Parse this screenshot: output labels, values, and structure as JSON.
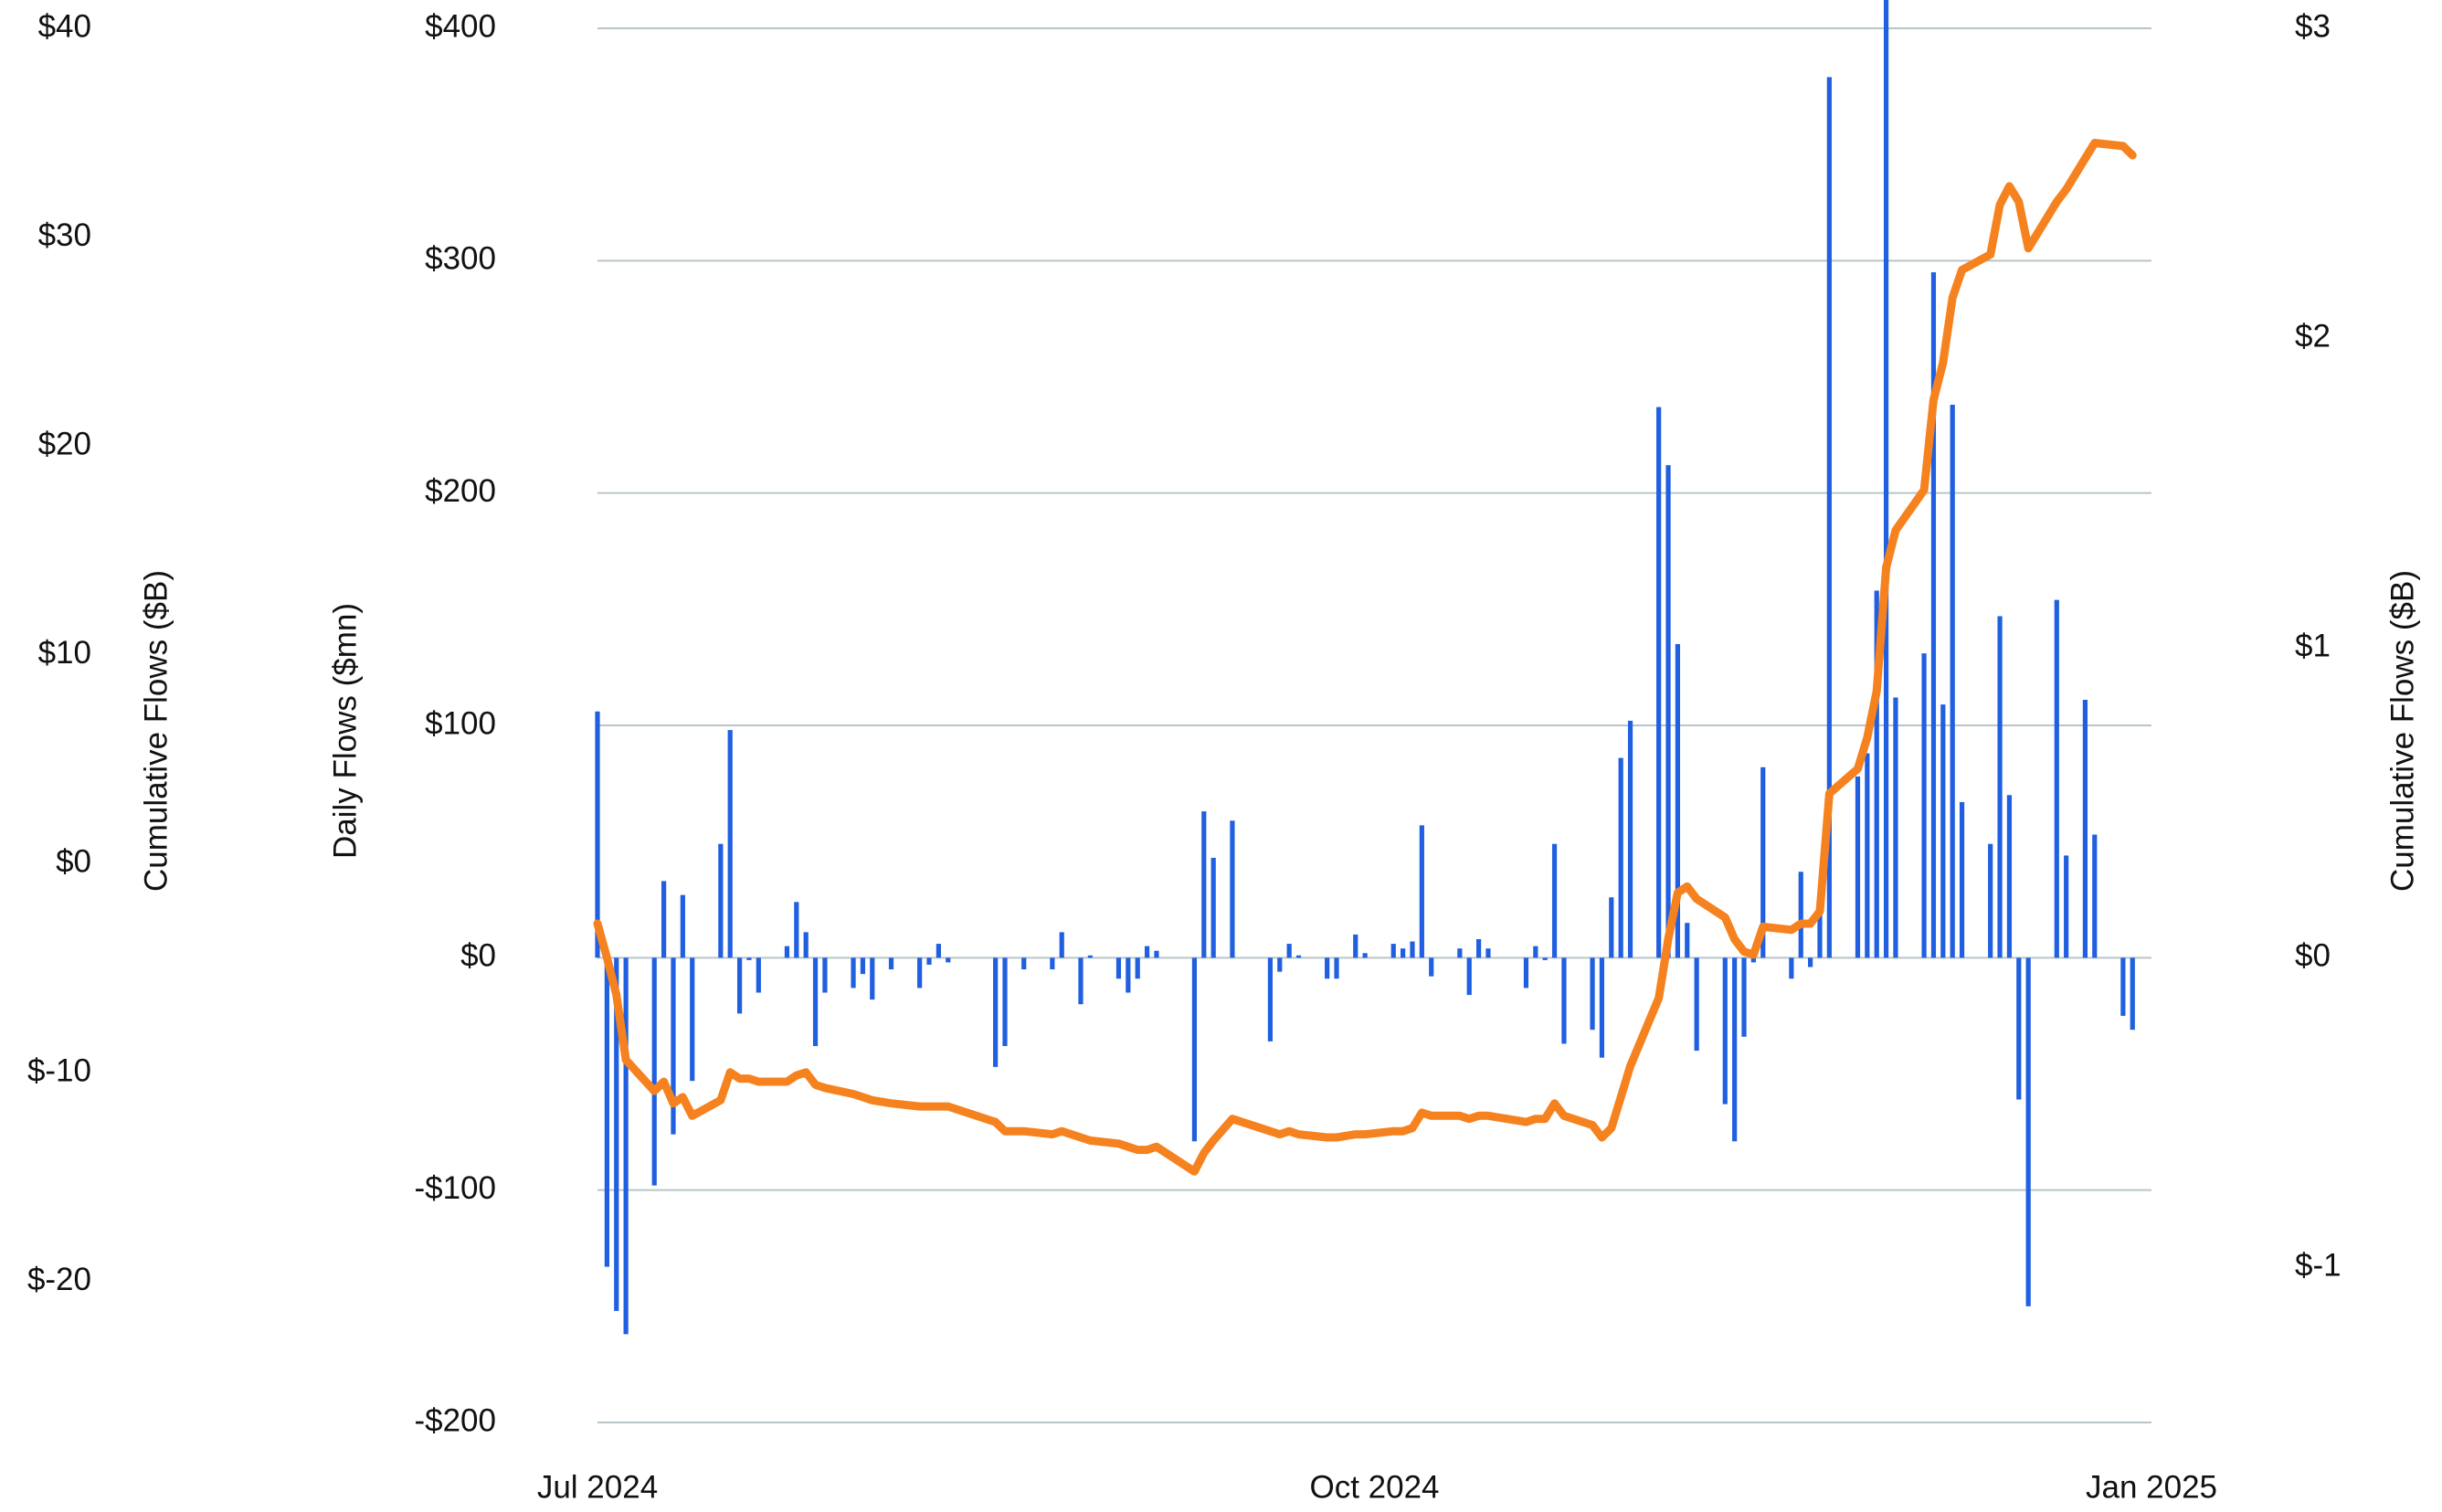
{
  "chart_data": {
    "type": "bar",
    "ylabel": "Daily Flows ($mn)",
    "y2label": "Cumulative Flows ($B)",
    "y3label": "Cumulative Flows ($B)",
    "x": [
      0,
      1,
      2,
      3,
      6,
      7,
      8,
      9,
      10,
      13,
      14,
      15,
      16,
      17,
      20,
      21,
      22,
      23,
      24,
      27,
      28,
      29,
      31,
      34,
      35,
      36,
      37,
      42,
      43,
      45,
      48,
      49,
      51,
      52,
      55,
      56,
      57,
      58,
      59,
      63,
      64,
      65,
      67,
      71,
      72,
      73,
      74,
      77,
      78,
      80,
      81,
      84,
      85,
      86,
      87,
      88,
      91,
      92,
      93,
      94,
      98,
      99,
      100,
      101,
      102,
      105,
      106,
      107,
      108,
      109,
      112,
      113,
      114,
      115,
      116,
      119,
      120,
      121,
      122,
      123,
      126,
      127,
      128,
      129,
      130,
      133,
      134,
      135,
      136,
      137,
      140,
      141,
      142,
      143,
      144,
      147,
      148,
      149,
      150,
      151,
      154,
      155,
      157,
      158,
      161,
      162
    ],
    "xlim": [
      0,
      164
    ],
    "xticks": [
      {
        "value": 0,
        "label": "Jul 2024"
      },
      {
        "value": 82,
        "label": "Oct 2024"
      },
      {
        "value": 164,
        "label": "Jan 2025"
      }
    ],
    "series": [
      {
        "type": "bar",
        "color": "#1f5fe0",
        "values": [
          106,
          -133,
          -152,
          -162,
          -98,
          33,
          -76,
          27,
          -53,
          49,
          98,
          -24,
          -1,
          -15,
          5,
          24,
          11,
          -38,
          -15,
          -13,
          -7,
          -18,
          -5,
          -13,
          -3,
          6,
          -2,
          -47,
          -38,
          -5,
          -5,
          11,
          -20,
          1,
          -9,
          -15,
          -9,
          5,
          3,
          -79,
          63,
          43,
          59,
          -36,
          -6,
          6,
          1,
          -9,
          -9,
          10,
          2,
          6,
          4,
          7,
          57,
          -8,
          4,
          -16,
          8,
          4,
          -13,
          5,
          -1,
          49,
          -37,
          -31,
          -43,
          26,
          86,
          102,
          237,
          212,
          135,
          15,
          -40,
          -63,
          -79,
          -34,
          -2,
          82,
          -9,
          37,
          -4,
          22,
          379,
          78,
          88,
          158,
          415,
          112,
          131,
          295,
          109,
          238,
          67,
          49,
          147,
          70,
          -61,
          -150,
          154,
          44,
          111,
          53,
          -25,
          -31
        ]
      },
      {
        "type": "line",
        "axis": "y2",
        "color": "#f5821f",
        "values": [
          0.11,
          0,
          -0.12,
          -0.33,
          -0.43,
          -0.4,
          -0.47,
          -0.45,
          -0.51,
          -0.46,
          -0.37,
          -0.39,
          -0.39,
          -0.4,
          -0.4,
          -0.38,
          -0.37,
          -0.41,
          -0.42,
          -0.44,
          -0.45,
          -0.46,
          -0.47,
          -0.48,
          -0.48,
          -0.48,
          -0.48,
          -0.53,
          -0.56,
          -0.56,
          -0.57,
          -0.56,
          -0.58,
          -0.59,
          -0.6,
          -0.61,
          -0.62,
          -0.62,
          -0.61,
          -0.69,
          -0.63,
          -0.59,
          -0.52,
          -0.56,
          -0.57,
          -0.56,
          -0.57,
          -0.58,
          -0.58,
          -0.57,
          -0.57,
          -0.56,
          -0.56,
          -0.55,
          -0.5,
          -0.51,
          -0.51,
          -0.52,
          -0.51,
          -0.51,
          -0.53,
          -0.52,
          -0.52,
          -0.47,
          -0.51,
          -0.54,
          -0.58,
          -0.55,
          -0.45,
          -0.35,
          -0.13,
          0.06,
          0.21,
          0.23,
          0.19,
          0.13,
          0.06,
          0.02,
          0.01,
          0.1,
          0.09,
          0.11,
          0.11,
          0.15,
          0.53,
          0.61,
          0.71,
          0.86,
          1.26,
          1.38,
          1.51,
          1.8,
          1.92,
          2.13,
          2.22,
          2.27,
          2.43,
          2.49,
          2.44,
          2.29,
          2.44,
          2.48,
          2.58,
          2.63,
          2.62,
          2.59
        ]
      }
    ],
    "ylim": [
      -200,
      400
    ],
    "yticks": [
      {
        "value": 400,
        "label": "$400"
      },
      {
        "value": 300,
        "label": "$300"
      },
      {
        "value": 200,
        "label": "$200"
      },
      {
        "value": 100,
        "label": "$100"
      },
      {
        "value": 0,
        "label": "$0"
      },
      {
        "value": -100,
        "label": "-$100"
      },
      {
        "value": -200,
        "label": "-$200"
      }
    ],
    "y2lim": [
      -1.5,
      3
    ],
    "y2ticks": [
      {
        "value": 3,
        "label": "$3"
      },
      {
        "value": 2,
        "label": "$2"
      },
      {
        "value": 1,
        "label": "$1"
      },
      {
        "value": 0,
        "label": "$0"
      },
      {
        "value": -1,
        "label": "$-1"
      }
    ],
    "y3lim": [
      -26.75,
      40
    ],
    "y3ticks": [
      {
        "value": 40,
        "label": "$40"
      },
      {
        "value": 30,
        "label": "$30"
      },
      {
        "value": 20,
        "label": "$20"
      },
      {
        "value": 10,
        "label": "$10"
      },
      {
        "value": 0,
        "label": "$0"
      },
      {
        "value": -10,
        "label": "$-10"
      },
      {
        "value": -20,
        "label": "$-20"
      }
    ],
    "grid": true
  }
}
